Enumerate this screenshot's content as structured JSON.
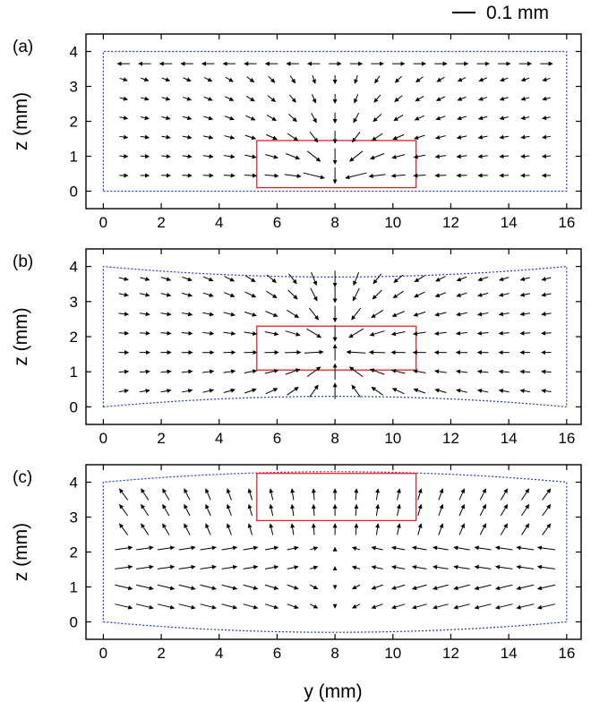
{
  "scale_bar_label": "0.1 mm",
  "colors": {
    "arrow": "#000000",
    "boundary": "#1f3bd6",
    "region": "#e8202a",
    "frame": "#000000"
  },
  "chart_data": [
    {
      "type": "quiver",
      "panel_label": "(a)",
      "xlabel": "y (mm)",
      "ylabel": "z (mm)",
      "xlim": [
        -0.6,
        16.5
      ],
      "ylim": [
        -0.5,
        4.5
      ],
      "xticks": [
        "0",
        "2",
        "4",
        "6",
        "8",
        "10",
        "12",
        "14",
        "16"
      ],
      "yticks": [
        "0",
        "1",
        "2",
        "3",
        "4"
      ],
      "x_tick_values": [
        0,
        2,
        4,
        6,
        8,
        10,
        12,
        14,
        16
      ],
      "y_tick_values": [
        0,
        1,
        2,
        3,
        4
      ],
      "field": "source",
      "sink_point": [
        8,
        0.2
      ],
      "region": {
        "y": [
          5.3,
          10.8
        ],
        "z": [
          0.1,
          1.45
        ]
      },
      "boundary": {
        "y": [
          0,
          16
        ],
        "z_bottom": 0,
        "z_top": 4.0,
        "bulge": 0
      }
    },
    {
      "type": "quiver",
      "panel_label": "(b)",
      "xlabel": "y (mm)",
      "ylabel": "z (mm)",
      "xlim": [
        -0.6,
        16.5
      ],
      "ylim": [
        -0.5,
        4.5
      ],
      "xticks": [
        "0",
        "2",
        "4",
        "6",
        "8",
        "10",
        "12",
        "14",
        "16"
      ],
      "yticks": [
        "0",
        "1",
        "2",
        "3",
        "4"
      ],
      "x_tick_values": [
        0,
        2,
        4,
        6,
        8,
        10,
        12,
        14,
        16
      ],
      "y_tick_values": [
        0,
        1,
        2,
        3,
        4
      ],
      "field": "converge",
      "sink_point": [
        8,
        1.6
      ],
      "region": {
        "y": [
          5.3,
          10.8
        ],
        "z": [
          1.05,
          2.3
        ]
      },
      "boundary": {
        "y": [
          0,
          16
        ],
        "z_bottom": 0,
        "z_top": 4.0,
        "bulge": -0.3
      }
    },
    {
      "type": "quiver",
      "panel_label": "(c)",
      "xlabel": "y (mm)",
      "ylabel": "z (mm)",
      "xlim": [
        -0.6,
        16.5
      ],
      "ylim": [
        -0.5,
        4.5
      ],
      "xticks": [
        "0",
        "2",
        "4",
        "6",
        "8",
        "10",
        "12",
        "14",
        "16"
      ],
      "yticks": [
        "0",
        "1",
        "2",
        "3",
        "4"
      ],
      "x_tick_values": [
        0,
        2,
        4,
        6,
        8,
        10,
        12,
        14,
        16
      ],
      "y_tick_values": [
        0,
        1,
        2,
        3,
        4
      ],
      "field": "cells",
      "sink_point": [
        8,
        3.6
      ],
      "region": {
        "y": [
          5.3,
          10.8
        ],
        "z": [
          2.9,
          4.25
        ]
      },
      "boundary": {
        "y": [
          0,
          16
        ],
        "z_bottom": 0,
        "z_top": 4.0,
        "bulge": 0.3
      }
    }
  ]
}
